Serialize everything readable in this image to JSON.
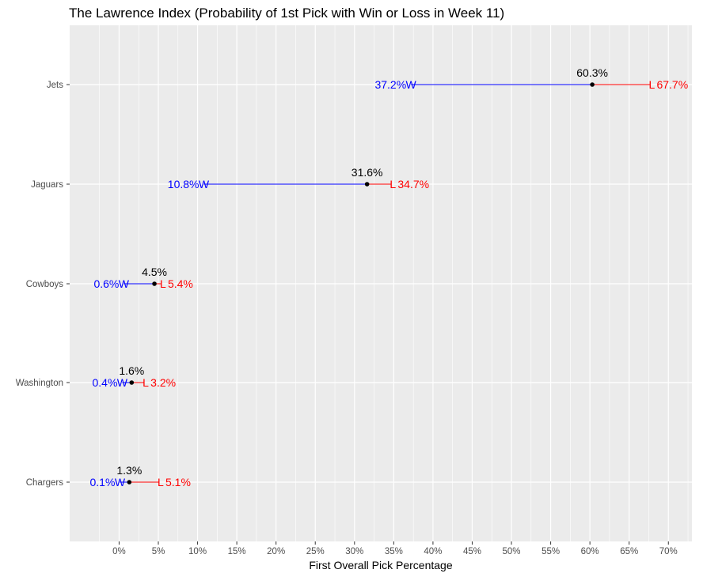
{
  "chart_data": {
    "type": "dumbbell",
    "title": "The Lawrence Index (Probability of 1st Pick with Win or Loss in Week 11)",
    "xlabel": "First Overall Pick Percentage",
    "ylabel": "",
    "xlim": [
      -6.3,
      73.0
    ],
    "x_ticks": [
      "0%",
      "5%",
      "10%",
      "15%",
      "20%",
      "25%",
      "30%",
      "35%",
      "40%",
      "45%",
      "50%",
      "55%",
      "60%",
      "65%",
      "70%"
    ],
    "x_tick_values": [
      0,
      5,
      10,
      15,
      20,
      25,
      30,
      35,
      40,
      45,
      50,
      55,
      60,
      65,
      70
    ],
    "grid": true,
    "categories": [
      "Jets",
      "Jaguars",
      "Cowboys",
      "Washington",
      "Chargers"
    ],
    "series": [
      {
        "name": "Current",
        "values": [
          60.3,
          31.6,
          4.5,
          1.6,
          1.3
        ],
        "labels": [
          "60.3%",
          "31.6%",
          "4.5%",
          "1.6%",
          "1.3%"
        ]
      },
      {
        "name": "W",
        "values": [
          37.2,
          10.8,
          0.6,
          0.4,
          0.1
        ],
        "labels": [
          "37.2%",
          "10.8%",
          "0.6%",
          "0.4%",
          "0.1%"
        ],
        "marker": "W"
      },
      {
        "name": "L",
        "values": [
          67.7,
          34.7,
          5.4,
          3.2,
          5.1
        ],
        "labels": [
          "67.7%",
          "34.7%",
          "5.4%",
          "3.2%",
          "5.1%"
        ],
        "marker": "L"
      }
    ],
    "colors": {
      "panel": "#ebebeb",
      "grid": "#ffffff",
      "win": "#0000ff",
      "loss": "#ff0000",
      "point": "#000000"
    }
  }
}
